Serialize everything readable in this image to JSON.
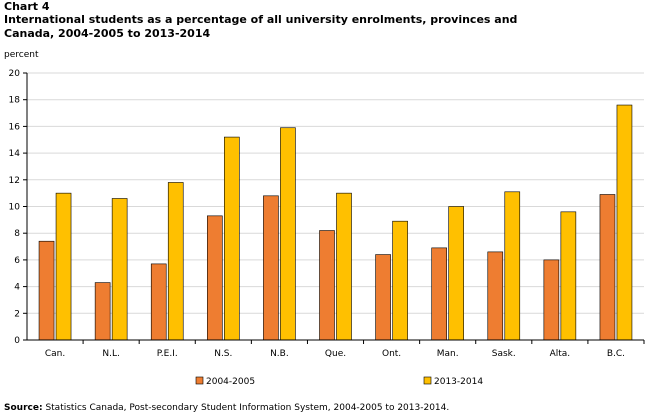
{
  "chart_number": "Chart 4",
  "title": "International students as a percentage of all university enrolments, provinces and Canada, 2004-2005 to 2013-2014",
  "source_label": "Source:",
  "source_text": "Statistics Canada, Post-secondary Student Information System, 2004-2005 to 2013-2014.",
  "colors": {
    "series1": "#ee7d31",
    "series2": "#ffc000",
    "axis": "#000000",
    "grid": "#d9d9d9"
  },
  "chart_data": {
    "type": "bar",
    "title": "International students as a percentage of all university enrolments, provinces and Canada, 2004-2005 to 2013-2014",
    "xlabel": "",
    "ylabel": "percent",
    "ylim": [
      0,
      20
    ],
    "yticks": [
      0,
      2,
      4,
      6,
      8,
      10,
      12,
      14,
      16,
      18,
      20
    ],
    "grid": true,
    "legend_position": "bottom",
    "categories": [
      "Can.",
      "N.L.",
      "P.E.I.",
      "N.S.",
      "N.B.",
      "Que.",
      "Ont.",
      "Man.",
      "Sask.",
      "Alta.",
      "B.C."
    ],
    "series": [
      {
        "name": "2004-2005",
        "values": [
          7.4,
          4.3,
          5.7,
          9.3,
          10.8,
          8.2,
          6.4,
          6.9,
          6.6,
          6.0,
          10.9
        ]
      },
      {
        "name": "2013-2014",
        "values": [
          11.0,
          10.6,
          11.8,
          15.2,
          15.9,
          11.0,
          8.9,
          10.0,
          11.1,
          9.6,
          17.6
        ]
      }
    ]
  }
}
